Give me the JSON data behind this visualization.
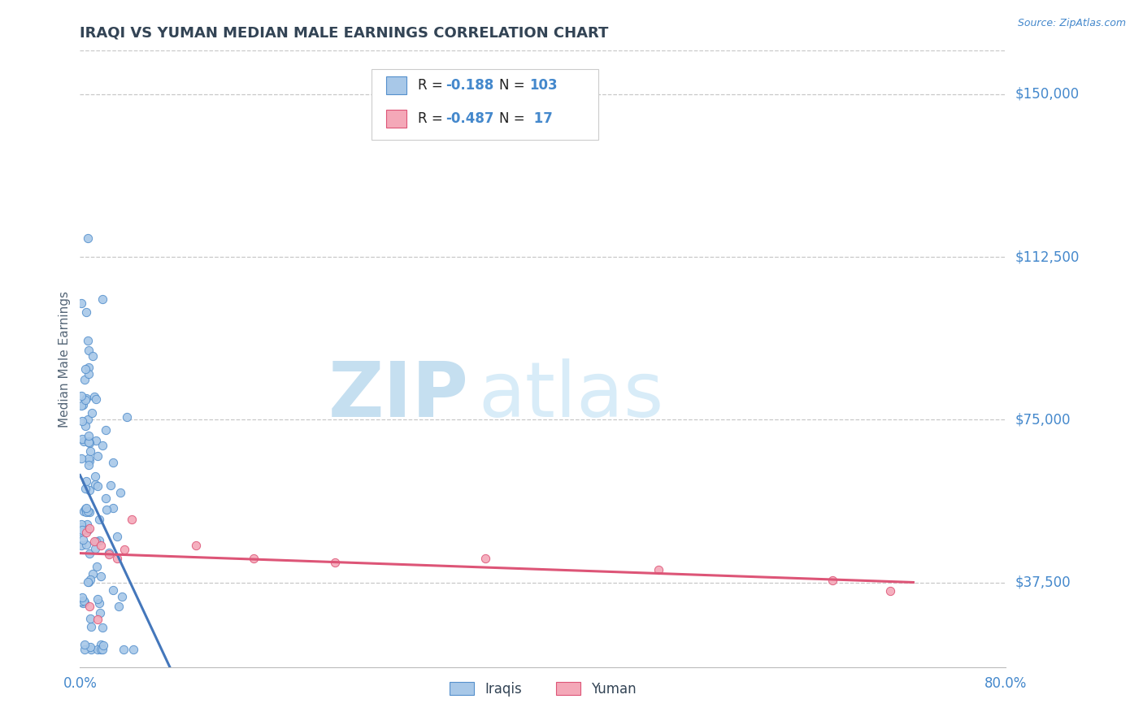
{
  "title": "IRAQI VS YUMAN MEDIAN MALE EARNINGS CORRELATION CHART",
  "source_text": "Source: ZipAtlas.com",
  "ylabel": "Median Male Earnings",
  "xlim": [
    0.0,
    0.8
  ],
  "ylim": [
    18000,
    160000
  ],
  "yticks": [
    37500,
    75000,
    112500,
    150000
  ],
  "ytick_labels": [
    "$37,500",
    "$75,000",
    "$112,500",
    "$150,000"
  ],
  "background_color": "#ffffff",
  "grid_color": "#c8c8c8",
  "iraqi_fill": "#a8c8e8",
  "yuman_fill": "#f4a8b8",
  "iraqi_edge": "#5590cc",
  "yuman_edge": "#dd5577",
  "trend_iraqi_color": "#4477bb",
  "trend_yuman_color": "#dd5577",
  "trend_extend_color": "#99bbdd",
  "tick_color": "#4488cc",
  "title_color": "#334455",
  "watermark_color": "#ddeeff",
  "R_iraqi": -0.188,
  "N_iraqi": 103,
  "R_yuman": -0.487,
  "N_yuman": 17
}
